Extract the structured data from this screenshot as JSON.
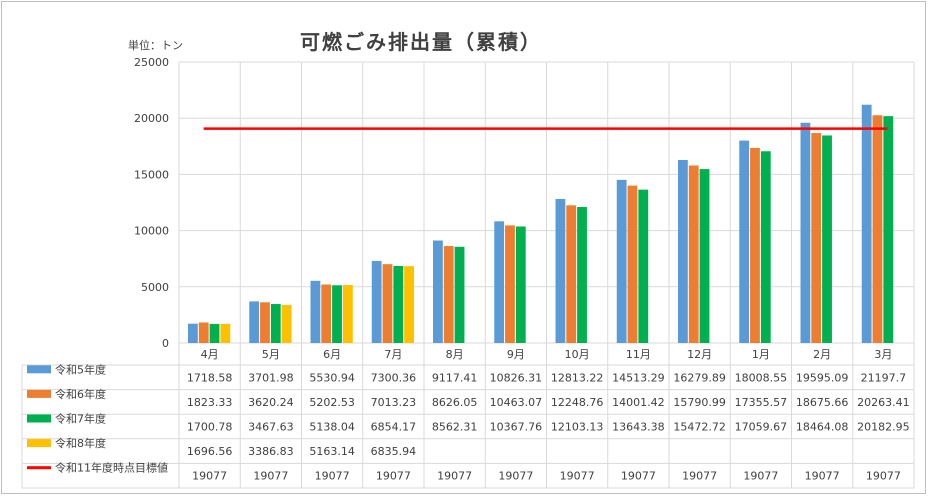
{
  "chart_data": {
    "type": "bar",
    "title": "可燃ごみ排出量（累積）",
    "unit_label": "単位：トン",
    "categories": [
      "4月",
      "5月",
      "6月",
      "7月",
      "8月",
      "9月",
      "10月",
      "11月",
      "12月",
      "1月",
      "2月",
      "3月"
    ],
    "ylim": [
      0,
      25000
    ],
    "yticks": [
      "0",
      "5000",
      "10000",
      "15000",
      "20000",
      "25000"
    ],
    "grid": true,
    "legend": "data-table",
    "series": [
      {
        "name": "令和5年度",
        "color": "#5b9bd5",
        "values": [
          1718.58,
          3701.98,
          5530.94,
          7300.36,
          9117.41,
          10826.31,
          12813.22,
          14513.29,
          16279.89,
          18008.55,
          19595.09,
          21197.7
        ],
        "labels": [
          "1718.58",
          "3701.98",
          "5530.94",
          "7300.36",
          "9117.41",
          "10826.31",
          "12813.22",
          "14513.29",
          "16279.89",
          "18008.55",
          "19595.09",
          "21197.7"
        ]
      },
      {
        "name": "令和6年度",
        "color": "#ed7d31",
        "values": [
          1823.33,
          3620.24,
          5202.53,
          7013.23,
          8626.05,
          10463.07,
          12248.76,
          14001.42,
          15790.99,
          17355.57,
          18675.66,
          20263.41
        ],
        "labels": [
          "1823.33",
          "3620.24",
          "5202.53",
          "7013.23",
          "8626.05",
          "10463.07",
          "12248.76",
          "14001.42",
          "15790.99",
          "17355.57",
          "18675.66",
          "20263.41"
        ]
      },
      {
        "name": "令和7年度",
        "color": "#00b050",
        "values": [
          1700.78,
          3467.63,
          5138.04,
          6854.17,
          8562.31,
          10367.76,
          12103.13,
          13643.38,
          15472.72,
          17059.67,
          18464.08,
          20182.95
        ],
        "labels": [
          "1700.78",
          "3467.63",
          "5138.04",
          "6854.17",
          "8562.31",
          "10367.76",
          "12103.13",
          "13643.38",
          "15472.72",
          "17059.67",
          "18464.08",
          "20182.95"
        ]
      },
      {
        "name": "令和8年度",
        "color": "#ffc000",
        "values": [
          1696.56,
          3386.83,
          5163.14,
          6835.94,
          null,
          null,
          null,
          null,
          null,
          null,
          null,
          null
        ],
        "labels": [
          "1696.56",
          "3386.83",
          "5163.14",
          "6835.94",
          "",
          "",
          "",
          "",
          "",
          "",
          "",
          ""
        ]
      }
    ],
    "target": {
      "name": "令和11年度時点目標値",
      "color": "#ff0000",
      "values": [
        19077,
        19077,
        19077,
        19077,
        19077,
        19077,
        19077,
        19077,
        19077,
        19077,
        19077,
        19077
      ],
      "labels": [
        "19077",
        "19077",
        "19077",
        "19077",
        "19077",
        "19077",
        "19077",
        "19077",
        "19077",
        "19077",
        "19077",
        "19077"
      ]
    }
  }
}
